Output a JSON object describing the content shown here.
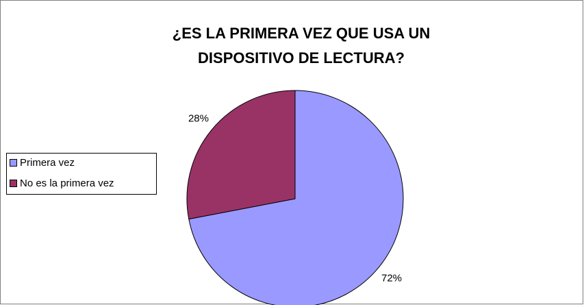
{
  "chart_data": {
    "type": "pie",
    "title": [
      "¿ES LA PRIMERA VEZ QUE USA UN",
      "DISPOSITIVO DE LECTURA?"
    ],
    "categories": [
      "Primera vez",
      "No es la primera vez"
    ],
    "values": [
      72,
      28
    ],
    "value_labels": [
      "72%",
      "28%"
    ],
    "colors": [
      "#9999ff",
      "#993366"
    ],
    "legend": "left"
  }
}
